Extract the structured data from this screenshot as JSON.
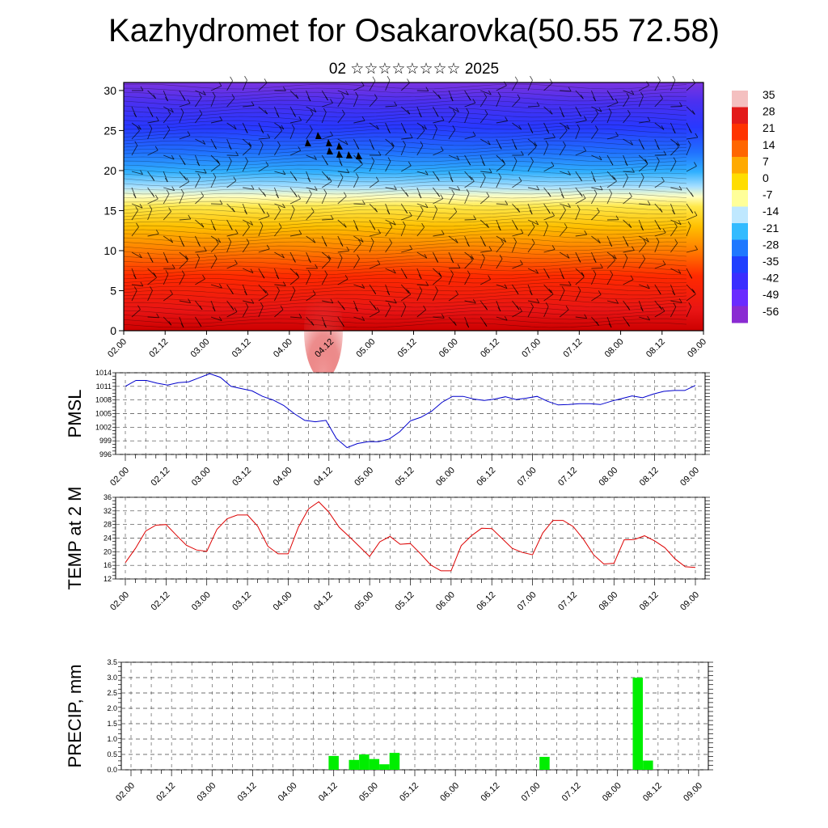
{
  "title": "Kazhydromet for Osakarovka(50.55 72.58)",
  "subtitle": "02 ☆☆☆☆☆☆☆☆ 2025",
  "chart_data": [
    {
      "type": "heatmap",
      "ylim": [
        0,
        31
      ],
      "yticks": [
        0,
        5,
        10,
        15,
        20,
        25,
        30
      ],
      "xticks": [
        "02.00",
        "02.12",
        "03.00",
        "03.12",
        "04.00",
        "04.12",
        "05.00",
        "05.12",
        "06.00",
        "06.12",
        "07.00",
        "07.12",
        "08.00",
        "08.12",
        "09.00"
      ],
      "colorbar_labels": [
        "35",
        "28",
        "21",
        "14",
        "7",
        "0",
        "-7",
        "-14",
        "-21",
        "-28",
        "-35",
        "-42",
        "-49",
        "-56"
      ]
    },
    {
      "type": "line",
      "ylabel": "PMSL",
      "ylim": [
        996,
        1014
      ],
      "yticks": [
        996,
        999,
        1002,
        1005,
        1008,
        1011,
        1014
      ],
      "xticks": [
        "02.00",
        "02.12",
        "03.00",
        "03.12",
        "04.00",
        "04.12",
        "05.00",
        "05.12",
        "06.00",
        "06.12",
        "07.00",
        "07.12",
        "08.00",
        "08.12",
        "09.00"
      ],
      "color": "#0000cc",
      "values": [
        1011,
        1012.3,
        1012.3,
        1011.7,
        1011.3,
        1011.8,
        1012,
        1012.9,
        1013.8,
        1013,
        1011,
        1010.5,
        1010,
        1008.8,
        1008,
        1006.8,
        1005,
        1003.5,
        1003.2,
        1003.5,
        999.5,
        997.5,
        998.4,
        998.8,
        998.8,
        999.4,
        1001,
        1003.4,
        1004.2,
        1005.5,
        1007.5,
        1008.8,
        1008.8,
        1008.2,
        1007.9,
        1008.2,
        1008.7,
        1008.1,
        1008.4,
        1008.8,
        1007.7,
        1006.9,
        1007,
        1007.2,
        1007.2,
        1007,
        1007.7,
        1008.3,
        1008.9,
        1008.5,
        1009.3,
        1009.9,
        1010.1,
        1010.1,
        1011.2
      ]
    },
    {
      "type": "line",
      "ylabel": "TEMP at 2 M",
      "ylim": [
        12,
        36
      ],
      "yticks": [
        12,
        16,
        20,
        24,
        28,
        32,
        36
      ],
      "xticks": [
        "02.00",
        "02.12",
        "03.00",
        "03.12",
        "04.00",
        "04.12",
        "05.00",
        "05.12",
        "06.00",
        "06.12",
        "07.00",
        "07.12",
        "08.00",
        "08.12",
        "09.00"
      ],
      "color": "#dd0000",
      "values": [
        16.8,
        21,
        26.1,
        27.8,
        28,
        24.9,
        21.9,
        20.5,
        20.1,
        26.6,
        29.7,
        30.8,
        30.8,
        27.5,
        21.6,
        19.4,
        19.4,
        27.2,
        32.6,
        34.7,
        31.6,
        27.2,
        24.4,
        21.5,
        18.6,
        22.9,
        24.5,
        22.2,
        22.4,
        19.4,
        16.1,
        14.4,
        14.4,
        21.8,
        24.7,
        26.9,
        26.8,
        23.9,
        21,
        19.8,
        19.1,
        25.5,
        29.2,
        29.2,
        27.4,
        23.7,
        19.1,
        16.4,
        16.6,
        23.5,
        23.6,
        24.7,
        23.2,
        21.2,
        17.9,
        15.6,
        15.4
      ]
    },
    {
      "type": "bar",
      "ylabel": "PRECIP, mm",
      "ylim": [
        0,
        3.5
      ],
      "yticks": [
        "0.0",
        "0.5",
        "1.0",
        "1.5",
        "2.0",
        "2.5",
        "3.0",
        "3.5"
      ],
      "xticks": [
        "02.00",
        "02.12",
        "03.00",
        "03.12",
        "04.00",
        "04.12",
        "05.00",
        "05.12",
        "06.00",
        "06.12",
        "07.00",
        "07.12",
        "08.00",
        "08.12",
        "09.00"
      ],
      "color": "#00ee00",
      "bars": [
        {
          "x": 2.5,
          "value": 0.45
        },
        {
          "x": 2.75,
          "value": 0.32
        },
        {
          "x": 2.875,
          "value": 0.5
        },
        {
          "x": 3.0,
          "value": 0.35
        },
        {
          "x": 3.125,
          "value": 0.18
        },
        {
          "x": 3.25,
          "value": 0.55
        },
        {
          "x": 5.1,
          "value": 0.42
        },
        {
          "x": 6.25,
          "value": 3.0
        },
        {
          "x": 6.375,
          "value": 0.3
        }
      ]
    }
  ],
  "colors": {
    "colorbar": [
      "#f4c0c0",
      "#e31a1a",
      "#ff3300",
      "#ff6600",
      "#ffaa00",
      "#ffdd00",
      "#ffff99",
      "#bfe8ff",
      "#33bbff",
      "#1f78ff",
      "#1f3fff",
      "#3a2eff",
      "#6a2bff",
      "#8a2bd2"
    ]
  }
}
